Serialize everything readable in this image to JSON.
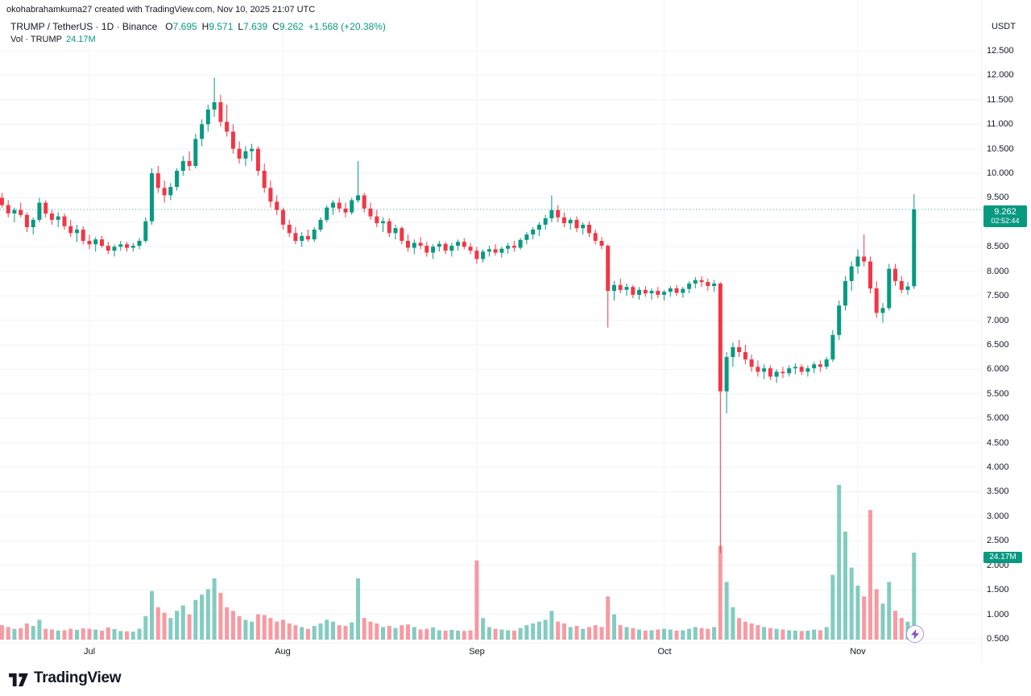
{
  "attribution": "okohabrahamkuma27 created with TradingView.com, Nov 10, 2025 21:07 UTC",
  "legend": {
    "title": "TRUMP / TetherUS · 1D · Binance",
    "ohlc": {
      "o_label": "O",
      "open": "7.695",
      "h_label": "H",
      "high": "9.571",
      "l_label": "L",
      "low": "7.639",
      "c_label": "C",
      "close": "9.262",
      "change": "+1.568 (+20.38%)"
    },
    "volume_label": "Vol · TRUMP",
    "volume_value": "24.17M"
  },
  "price_axis": {
    "currency": "USDT",
    "ticks": [
      "12.500",
      "12.000",
      "11.500",
      "11.000",
      "10.500",
      "10.000",
      "9.500",
      "9.000",
      "8.500",
      "8.000",
      "7.500",
      "7.000",
      "6.500",
      "6.000",
      "5.500",
      "5.000",
      "4.500",
      "4.000",
      "3.500",
      "3.000",
      "2.500",
      "2.000",
      "1.500",
      "1.000",
      "0.500"
    ],
    "last_price_badge": {
      "price": "9.262",
      "countdown": "02:52:44"
    },
    "volume_badge": "24.17M"
  },
  "footer": {
    "brand": "TradingView"
  },
  "icons": {
    "flash_button": "lightning-bolt-icon",
    "logo_mark": "tradingview-17-mark"
  },
  "colors": {
    "up": "#089981",
    "down": "#F23645",
    "volume_up": "rgba(8,153,129,0.5)",
    "volume_down": "rgba(242,54,69,0.5)",
    "grid": "#f0f3fa",
    "text": "#131722",
    "flash_purple": "#7e57c2"
  },
  "chart_data": {
    "type": "candlestick",
    "symbol": "TRUMP/USDT",
    "exchange": "Binance",
    "interval": "1D",
    "ylim": [
      0.5,
      12.5
    ],
    "grid": true,
    "last_price": 9.262,
    "countdown": "02:52:44",
    "current_volume_millions": 24.17,
    "month_boundaries": [
      {
        "label": "Jul",
        "index": 14
      },
      {
        "label": "Aug",
        "index": 45
      },
      {
        "label": "Sep",
        "index": 76
      },
      {
        "label": "Oct",
        "index": 106
      },
      {
        "label": "Nov",
        "index": 137
      }
    ],
    "candles_format": [
      "open",
      "high",
      "low",
      "close",
      "volume_millions"
    ],
    "candles": [
      [
        9.5,
        9.6,
        9.3,
        9.35,
        4.0
      ],
      [
        9.35,
        9.45,
        9.1,
        9.18,
        3.5
      ],
      [
        9.18,
        9.3,
        9.0,
        9.25,
        3.0
      ],
      [
        9.25,
        9.4,
        9.1,
        9.15,
        3.2
      ],
      [
        9.15,
        9.2,
        8.8,
        8.9,
        4.5
      ],
      [
        8.9,
        9.1,
        8.75,
        9.05,
        3.8
      ],
      [
        9.05,
        9.5,
        9.0,
        9.4,
        5.5
      ],
      [
        9.4,
        9.45,
        9.1,
        9.18,
        3.0
      ],
      [
        9.18,
        9.25,
        8.95,
        9.05,
        2.8
      ],
      [
        9.05,
        9.2,
        8.9,
        9.12,
        2.5
      ],
      [
        9.12,
        9.18,
        8.85,
        8.92,
        2.6
      ],
      [
        8.92,
        9.05,
        8.7,
        8.78,
        3.0
      ],
      [
        8.78,
        8.95,
        8.6,
        8.85,
        2.7
      ],
      [
        8.85,
        8.92,
        8.55,
        8.62,
        3.1
      ],
      [
        8.62,
        8.75,
        8.45,
        8.55,
        3.0
      ],
      [
        8.55,
        8.7,
        8.4,
        8.65,
        2.8
      ],
      [
        8.65,
        8.72,
        8.48,
        8.52,
        2.5
      ],
      [
        8.52,
        8.6,
        8.35,
        8.42,
        3.4
      ],
      [
        8.42,
        8.55,
        8.3,
        8.5,
        2.9
      ],
      [
        8.5,
        8.62,
        8.42,
        8.55,
        2.4
      ],
      [
        8.55,
        8.6,
        8.4,
        8.48,
        2.3
      ],
      [
        8.48,
        8.58,
        8.4,
        8.52,
        2.2
      ],
      [
        8.52,
        8.68,
        8.45,
        8.62,
        3.0
      ],
      [
        8.62,
        9.1,
        8.58,
        9.02,
        6.5
      ],
      [
        9.02,
        10.1,
        8.95,
        10.0,
        13.5
      ],
      [
        10.0,
        10.15,
        9.6,
        9.7,
        9.0
      ],
      [
        9.7,
        9.85,
        9.4,
        9.55,
        7.5
      ],
      [
        9.55,
        9.8,
        9.45,
        9.72,
        6.0
      ],
      [
        9.72,
        10.1,
        9.65,
        10.05,
        8.0
      ],
      [
        10.05,
        10.35,
        9.95,
        10.25,
        9.5
      ],
      [
        10.25,
        10.45,
        10.05,
        10.15,
        7.0
      ],
      [
        10.15,
        10.8,
        10.1,
        10.7,
        11.0
      ],
      [
        10.7,
        11.1,
        10.55,
        11.0,
        12.5
      ],
      [
        11.0,
        11.4,
        10.85,
        11.3,
        14.0
      ],
      [
        11.3,
        11.95,
        11.15,
        11.45,
        17.0
      ],
      [
        11.45,
        11.6,
        10.95,
        11.05,
        13.0
      ],
      [
        11.05,
        11.4,
        10.75,
        10.85,
        9.0
      ],
      [
        10.85,
        11.0,
        10.4,
        10.5,
        8.0
      ],
      [
        10.5,
        10.65,
        10.2,
        10.3,
        6.5
      ],
      [
        10.3,
        10.55,
        10.15,
        10.45,
        5.5
      ],
      [
        10.45,
        10.6,
        10.25,
        10.5,
        5.0
      ],
      [
        10.5,
        10.55,
        9.95,
        10.05,
        7.0
      ],
      [
        10.05,
        10.2,
        9.6,
        9.7,
        6.8
      ],
      [
        9.7,
        9.85,
        9.3,
        9.42,
        6.0
      ],
      [
        9.42,
        9.55,
        9.15,
        9.25,
        5.0
      ],
      [
        9.25,
        9.3,
        8.85,
        8.95,
        5.5
      ],
      [
        8.95,
        9.05,
        8.7,
        8.78,
        4.5
      ],
      [
        8.78,
        8.9,
        8.55,
        8.62,
        4.0
      ],
      [
        8.62,
        8.8,
        8.5,
        8.72,
        3.5
      ],
      [
        8.72,
        8.85,
        8.6,
        8.65,
        3.0
      ],
      [
        8.65,
        8.9,
        8.6,
        8.85,
        3.8
      ],
      [
        8.85,
        9.1,
        8.8,
        9.05,
        4.5
      ],
      [
        9.05,
        9.35,
        9.0,
        9.3,
        5.5
      ],
      [
        9.3,
        9.45,
        9.15,
        9.4,
        5.0
      ],
      [
        9.4,
        9.5,
        9.2,
        9.28,
        4.0
      ],
      [
        9.28,
        9.4,
        9.1,
        9.2,
        3.8
      ],
      [
        9.2,
        9.5,
        9.15,
        9.45,
        4.8
      ],
      [
        9.45,
        10.25,
        9.4,
        9.55,
        17.0
      ],
      [
        9.55,
        9.6,
        9.2,
        9.28,
        6.0
      ],
      [
        9.28,
        9.4,
        9.05,
        9.12,
        5.0
      ],
      [
        9.12,
        9.25,
        8.9,
        8.98,
        4.5
      ],
      [
        8.98,
        9.1,
        8.8,
        9.02,
        3.5
      ],
      [
        9.02,
        9.08,
        8.7,
        8.78,
        3.8
      ],
      [
        8.78,
        8.95,
        8.65,
        8.88,
        3.2
      ],
      [
        8.88,
        8.92,
        8.55,
        8.62,
        4.0
      ],
      [
        8.62,
        8.75,
        8.4,
        8.48,
        4.2
      ],
      [
        8.48,
        8.65,
        8.35,
        8.58,
        3.5
      ],
      [
        8.58,
        8.7,
        8.45,
        8.52,
        2.8
      ],
      [
        8.52,
        8.6,
        8.3,
        8.38,
        3.0
      ],
      [
        8.38,
        8.55,
        8.25,
        8.5,
        3.4
      ],
      [
        8.5,
        8.62,
        8.4,
        8.56,
        2.6
      ],
      [
        8.56,
        8.6,
        8.35,
        8.42,
        2.5
      ],
      [
        8.42,
        8.58,
        8.3,
        8.52,
        2.7
      ],
      [
        8.52,
        8.65,
        8.42,
        8.6,
        2.5
      ],
      [
        8.6,
        8.68,
        8.45,
        8.5,
        2.4
      ],
      [
        8.5,
        8.58,
        8.35,
        8.42,
        2.6
      ],
      [
        8.42,
        8.5,
        8.15,
        8.25,
        22.0
      ],
      [
        8.25,
        8.45,
        8.18,
        8.4,
        6.0
      ],
      [
        8.4,
        8.52,
        8.3,
        8.45,
        3.5
      ],
      [
        8.45,
        8.55,
        8.32,
        8.38,
        3.0
      ],
      [
        8.38,
        8.5,
        8.28,
        8.46,
        2.8
      ],
      [
        8.46,
        8.58,
        8.36,
        8.52,
        2.6
      ],
      [
        8.52,
        8.62,
        8.4,
        8.48,
        2.5
      ],
      [
        8.48,
        8.68,
        8.44,
        8.64,
        3.2
      ],
      [
        8.64,
        8.8,
        8.55,
        8.75,
        4.0
      ],
      [
        8.75,
        8.9,
        8.65,
        8.85,
        4.5
      ],
      [
        8.85,
        9.0,
        8.72,
        8.95,
        5.0
      ],
      [
        8.95,
        9.15,
        8.85,
        9.08,
        5.5
      ],
      [
        9.08,
        9.55,
        9.0,
        9.25,
        8.0
      ],
      [
        9.25,
        9.35,
        9.0,
        9.1,
        5.0
      ],
      [
        9.1,
        9.2,
        8.9,
        8.98,
        4.5
      ],
      [
        8.98,
        9.1,
        8.85,
        9.05,
        3.5
      ],
      [
        9.05,
        9.12,
        8.8,
        8.88,
        3.8
      ],
      [
        8.88,
        9.0,
        8.75,
        8.95,
        3.0
      ],
      [
        8.95,
        9.02,
        8.7,
        8.78,
        3.5
      ],
      [
        8.78,
        8.85,
        8.55,
        8.62,
        4.0
      ],
      [
        8.62,
        8.7,
        8.45,
        8.52,
        3.5
      ],
      [
        8.52,
        8.55,
        6.85,
        7.6,
        12.0
      ],
      [
        7.6,
        7.8,
        7.4,
        7.72,
        7.0
      ],
      [
        7.72,
        7.85,
        7.55,
        7.62,
        4.0
      ],
      [
        7.62,
        7.75,
        7.5,
        7.68,
        3.5
      ],
      [
        7.68,
        7.72,
        7.45,
        7.52,
        3.2
      ],
      [
        7.52,
        7.68,
        7.42,
        7.62,
        2.8
      ],
      [
        7.62,
        7.7,
        7.48,
        7.55,
        2.5
      ],
      [
        7.55,
        7.65,
        7.42,
        7.6,
        2.6
      ],
      [
        7.6,
        7.68,
        7.45,
        7.52,
        2.8
      ],
      [
        7.52,
        7.62,
        7.4,
        7.58,
        3.0
      ],
      [
        7.58,
        7.7,
        7.48,
        7.65,
        2.8
      ],
      [
        7.65,
        7.72,
        7.5,
        7.56,
        2.5
      ],
      [
        7.56,
        7.68,
        7.46,
        7.64,
        2.6
      ],
      [
        7.64,
        7.8,
        7.55,
        7.75,
        3.0
      ],
      [
        7.75,
        7.88,
        7.65,
        7.82,
        3.5
      ],
      [
        7.82,
        7.9,
        7.68,
        7.78,
        3.2
      ],
      [
        7.78,
        7.85,
        7.6,
        7.7,
        3.0
      ],
      [
        7.7,
        7.82,
        7.58,
        7.75,
        3.5
      ],
      [
        7.75,
        7.78,
        2.25,
        5.55,
        26.0
      ],
      [
        5.55,
        6.35,
        5.1,
        6.25,
        16.0
      ],
      [
        6.25,
        6.55,
        6.05,
        6.45,
        9.0
      ],
      [
        6.45,
        6.6,
        6.25,
        6.35,
        6.0
      ],
      [
        6.35,
        6.5,
        6.1,
        6.2,
        5.0
      ],
      [
        6.2,
        6.3,
        5.95,
        6.05,
        4.5
      ],
      [
        6.05,
        6.18,
        5.85,
        5.95,
        4.0
      ],
      [
        5.95,
        6.1,
        5.8,
        6.02,
        3.5
      ],
      [
        6.02,
        6.08,
        5.78,
        5.85,
        3.2
      ],
      [
        5.85,
        6.0,
        5.72,
        5.95,
        3.0
      ],
      [
        5.95,
        6.05,
        5.82,
        5.92,
        2.8
      ],
      [
        5.92,
        6.08,
        5.85,
        6.02,
        2.6
      ],
      [
        6.02,
        6.12,
        5.9,
        6.05,
        2.5
      ],
      [
        6.05,
        6.1,
        5.88,
        5.95,
        2.4
      ],
      [
        5.95,
        6.08,
        5.85,
        6.02,
        2.5
      ],
      [
        6.02,
        6.15,
        5.92,
        6.1,
        2.8
      ],
      [
        6.1,
        6.18,
        5.95,
        6.05,
        2.6
      ],
      [
        6.05,
        6.25,
        6.0,
        6.2,
        3.5
      ],
      [
        6.2,
        6.8,
        6.15,
        6.7,
        18.0
      ],
      [
        6.7,
        7.4,
        6.6,
        7.3,
        43.0
      ],
      [
        7.3,
        7.9,
        7.2,
        7.8,
        30.0
      ],
      [
        7.8,
        8.2,
        7.6,
        8.1,
        20.0
      ],
      [
        8.1,
        8.45,
        7.95,
        8.3,
        15.0
      ],
      [
        8.3,
        8.75,
        8.1,
        8.2,
        12.0
      ],
      [
        8.2,
        8.3,
        7.55,
        7.65,
        36.0
      ],
      [
        7.65,
        7.8,
        7.05,
        7.15,
        14.0
      ],
      [
        7.15,
        7.35,
        6.95,
        7.25,
        10.0
      ],
      [
        7.25,
        8.15,
        7.2,
        8.05,
        16.0
      ],
      [
        8.05,
        8.15,
        7.7,
        7.8,
        8.0
      ],
      [
        7.8,
        7.9,
        7.55,
        7.62,
        6.0
      ],
      [
        7.62,
        7.78,
        7.52,
        7.69,
        5.0
      ],
      [
        7.695,
        9.571,
        7.639,
        9.262,
        24.17
      ]
    ]
  }
}
